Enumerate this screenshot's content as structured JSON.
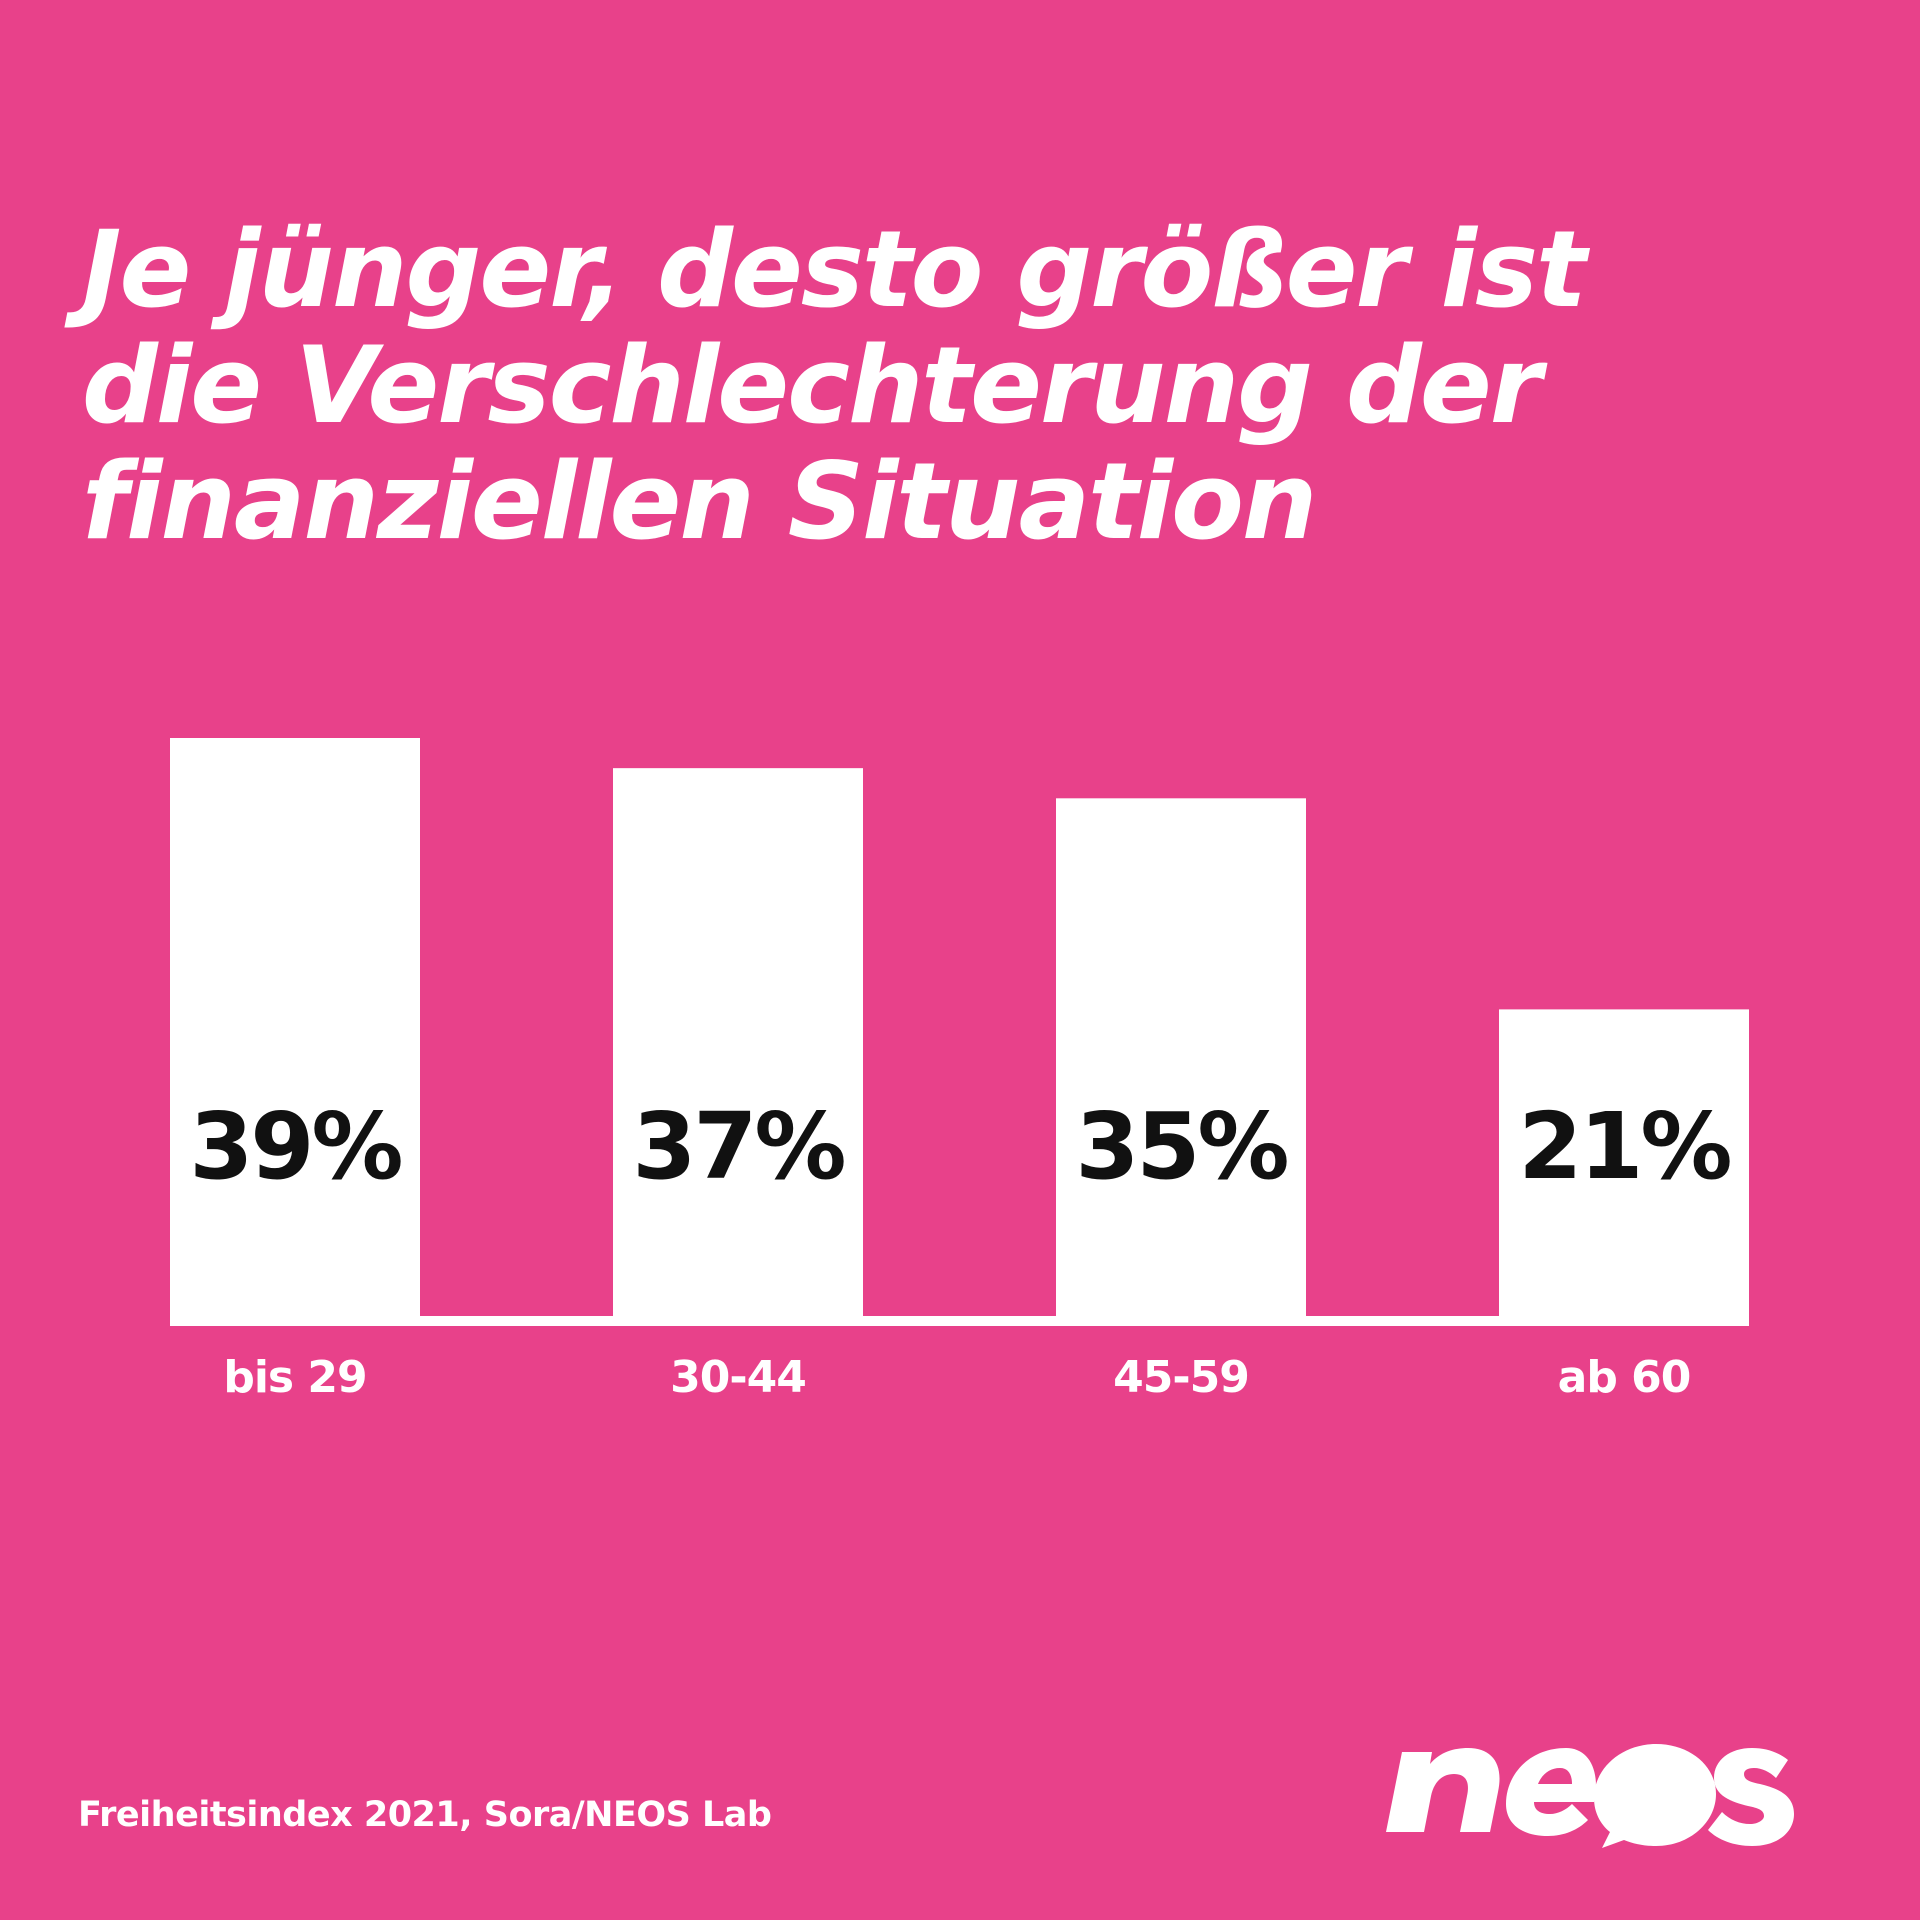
{
  "colors": {
    "background": "#e8418a",
    "bar": "#ffffff",
    "value_text": "#111111",
    "text": "#ffffff"
  },
  "chart_data": {
    "type": "bar",
    "title": "Je jünger, desto größer ist die Verschlechterung der finanziellen Situation",
    "title_lines": [
      "Je jünger, desto größer ist",
      "die Verschlechterung der",
      "finanziellen Situation"
    ],
    "categories": [
      "bis 29",
      "30-44",
      "45-59",
      "ab 60"
    ],
    "values": [
      39,
      37,
      35,
      21
    ],
    "value_labels": [
      "39%",
      "37%",
      "35%",
      "21%"
    ],
    "unit": "%",
    "ylim": [
      0,
      39
    ],
    "grid": false,
    "legend": "none",
    "xlabel": "",
    "ylabel": ""
  },
  "source": "Freiheitsindex 2021, Sora/NEOS Lab",
  "logo": {
    "text": "neos"
  }
}
